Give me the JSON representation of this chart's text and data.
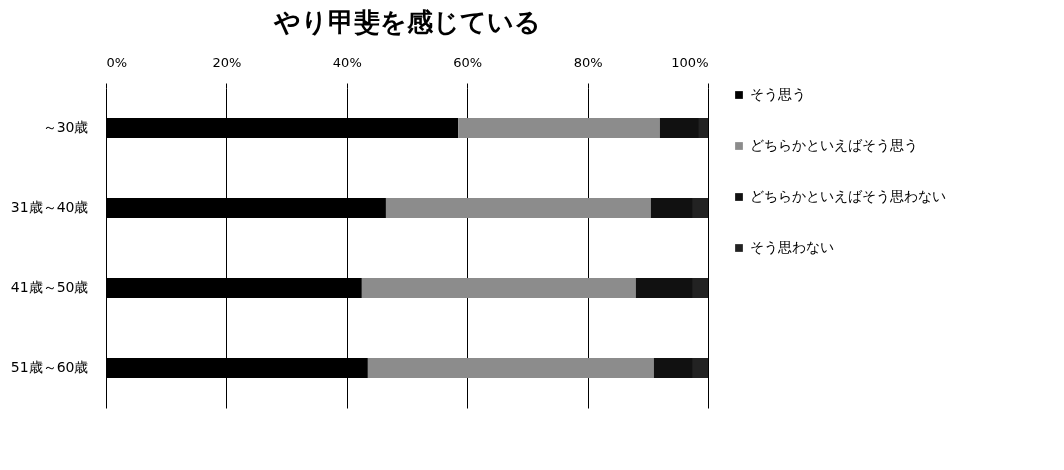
{
  "chart_data": {
    "type": "bar",
    "orientation": "horizontal",
    "stacked": true,
    "title": "やり甲斐を感じている",
    "categories": [
      "～30歳",
      "31歳～40歳",
      "41歳～50歳",
      "51歳～60歳"
    ],
    "series": [
      {
        "name": "そう思う",
        "color": "#000000",
        "values": [
          58.5,
          46.5,
          42.5,
          43.5
        ]
      },
      {
        "name": "どちらかといえばそう思う",
        "color": "#8c8c8c",
        "values": [
          33.5,
          44,
          45.5,
          47.5
        ]
      },
      {
        "name": "どちらかといえばそう思わない",
        "color": "#111111",
        "values": [
          6.5,
          7,
          9.5,
          6.5
        ]
      },
      {
        "name": "そう思わない",
        "color": "#222222",
        "values": [
          1.5,
          2.5,
          2.5,
          2.5
        ]
      }
    ],
    "xlim": [
      0,
      100
    ],
    "xticks": [
      {
        "value": 0,
        "label": "0%"
      },
      {
        "value": 20,
        "label": "20%"
      },
      {
        "value": 40,
        "label": "40%"
      },
      {
        "value": 60,
        "label": "60%"
      },
      {
        "value": 80,
        "label": "80%"
      },
      {
        "value": 100,
        "label": "100%"
      }
    ],
    "grid": "x",
    "legend": "right"
  }
}
